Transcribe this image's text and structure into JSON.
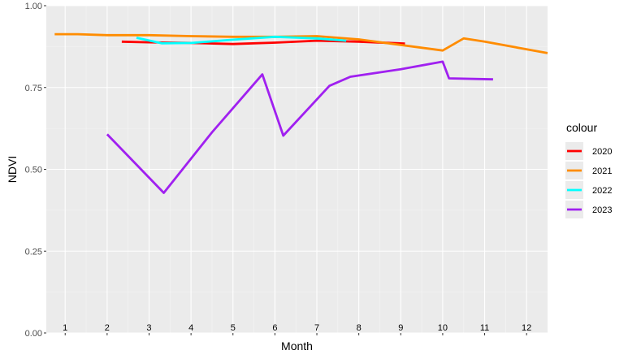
{
  "chart_data": {
    "type": "line",
    "xlabel": "Month",
    "ylabel": "NDVI",
    "xlim": [
      0.55,
      12.5
    ],
    "ylim": [
      0,
      1
    ],
    "x_ticks": [
      1,
      2,
      3,
      4,
      5,
      6,
      7,
      8,
      9,
      10,
      11,
      12
    ],
    "x_tick_labels": [
      "1",
      "2",
      "3",
      "4",
      "5",
      "6",
      "7",
      "8",
      "9",
      "10",
      "11",
      "12"
    ],
    "y_ticks": [
      0,
      0.25,
      0.5,
      0.75,
      1
    ],
    "y_tick_labels": [
      "0.00",
      "0.25",
      "0.50",
      "0.75",
      "1.00"
    ],
    "grid": true,
    "legend": {
      "title": "colour",
      "position": "right"
    },
    "series": [
      {
        "name": "2020",
        "color": "#ff0000",
        "x": [
          2.35,
          3.0,
          4.0,
          5.0,
          6.0,
          7.0,
          8.0,
          9.1
        ],
        "y": [
          0.89,
          0.888,
          0.886,
          0.883,
          0.887,
          0.893,
          0.89,
          0.884
        ]
      },
      {
        "name": "2021",
        "color": "#ff8c00",
        "x": [
          0.75,
          1.3,
          2.0,
          3.0,
          4.0,
          5.0,
          6.0,
          7.0,
          8.0,
          9.0,
          10.0,
          10.5,
          11.0,
          12.5
        ],
        "y": [
          0.913,
          0.913,
          0.91,
          0.91,
          0.907,
          0.905,
          0.905,
          0.907,
          0.897,
          0.88,
          0.863,
          0.9,
          0.89,
          0.855
        ]
      },
      {
        "name": "2022",
        "color": "#00ffff",
        "x": [
          2.7,
          3.3,
          4.0,
          5.0,
          6.0,
          7.0,
          7.7
        ],
        "y": [
          0.902,
          0.885,
          0.886,
          0.896,
          0.905,
          0.9,
          0.893
        ]
      },
      {
        "name": "2023",
        "color": "#a020f0",
        "x": [
          2.0,
          3.35,
          4.5,
          5.7,
          6.2,
          7.3,
          7.8,
          9.0,
          10.0,
          10.15,
          11.2
        ],
        "y": [
          0.607,
          0.428,
          0.613,
          0.79,
          0.603,
          0.755,
          0.783,
          0.806,
          0.829,
          0.778,
          0.775
        ]
      }
    ]
  }
}
